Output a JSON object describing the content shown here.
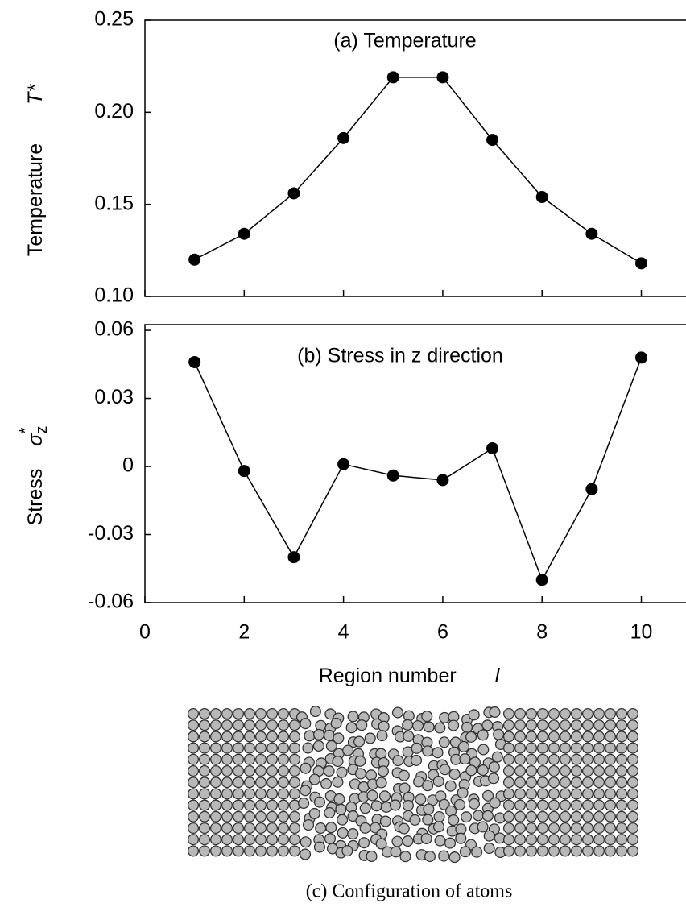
{
  "chart_data": [
    {
      "type": "line",
      "title": "(a) Temperature",
      "ylabel": "Temperature",
      "ylabel_symbol": "T*",
      "x": [
        1,
        2,
        3,
        4,
        5,
        6,
        7,
        8,
        9,
        10
      ],
      "series": [
        {
          "color": "#000000",
          "values": [
            0.12,
            0.134,
            0.156,
            0.186,
            0.219,
            0.219,
            0.185,
            0.154,
            0.134,
            0.118
          ]
        }
      ],
      "xlim": [
        0,
        10.9
      ],
      "ylim": [
        0.1,
        0.25
      ],
      "yticks": [
        {
          "value": 0.1,
          "label": "0.10"
        },
        {
          "value": 0.15,
          "label": "0.15"
        },
        {
          "value": 0.2,
          "label": "0.20"
        },
        0.25
      ]
    },
    {
      "type": "line",
      "title": "(b) Stress in z direction",
      "ylabel": "Stress",
      "ylabel_symbol": "σ",
      "ylabel_subscript": "z",
      "ylabel_superscript": "*",
      "xlabel": "Region number",
      "xlabel_symbol": "l",
      "x": [
        1,
        2,
        3,
        4,
        5,
        6,
        7,
        8,
        9,
        10
      ],
      "series": [
        {
          "color": "#000000",
          "values": [
            0.046,
            -0.002,
            -0.04,
            0.001,
            -0.004,
            -0.006,
            0.008,
            -0.05,
            -0.01,
            0.048
          ]
        }
      ],
      "xlim": [
        0,
        10.9
      ],
      "ylim": [
        -0.06,
        0.0625
      ],
      "xticks": [
        0,
        2,
        4,
        6,
        8,
        10
      ],
      "yticks": [
        0.06,
        0.03,
        0,
        -0.03,
        -0.06
      ]
    }
  ],
  "caption": "(c) Configuration of atoms"
}
